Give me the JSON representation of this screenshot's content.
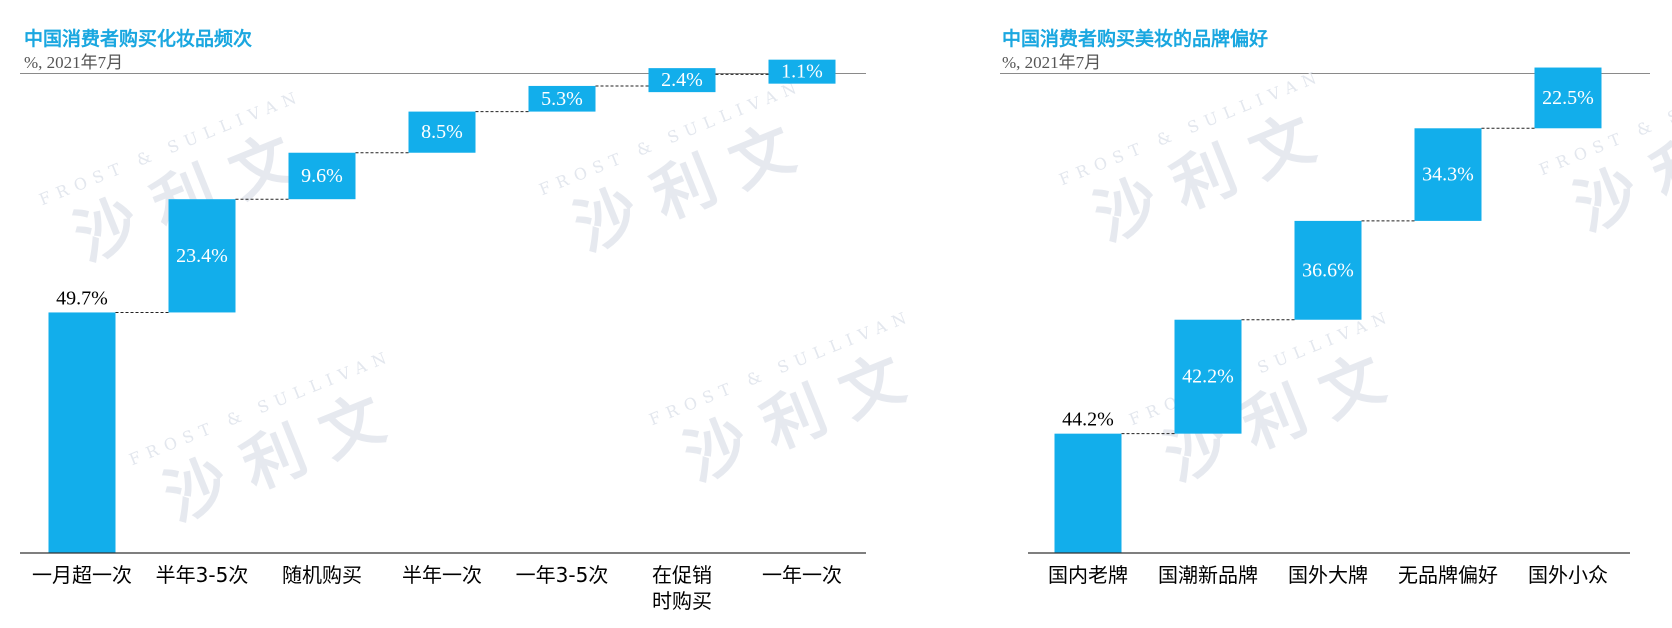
{
  "colors": {
    "bar": "#12aeeb",
    "title": "#1aa7e0",
    "subtitle": "#555555",
    "axis": "#333333"
  },
  "watermark": {
    "latin": "FROST & SULLIVAN",
    "cn": "沙 利 文"
  },
  "chart_data": [
    {
      "type": "waterfall",
      "title": "中国消费者购买化妆品频次",
      "subtitle": "%, 2021年7月",
      "categories": [
        "一月超一次",
        "半年3-5次",
        "随机购买",
        "半年一次",
        "一年3-5次",
        "在促销\n时购买",
        "一年一次"
      ],
      "values": [
        49.7,
        23.4,
        9.6,
        8.5,
        5.3,
        2.4,
        1.1
      ],
      "labels": [
        "49.7%",
        "23.4%",
        "9.6%",
        "8.5%",
        "5.3%",
        "2.4%",
        "1.1%"
      ],
      "ylim": [
        0,
        100
      ]
    },
    {
      "type": "waterfall",
      "title": "中国消费者购买美妆的品牌偏好",
      "subtitle": "%, 2021年7月",
      "categories": [
        "国内老牌",
        "国潮新品牌",
        "国外大牌",
        "无品牌偏好",
        "国外小众"
      ],
      "values": [
        44.2,
        42.2,
        36.6,
        34.3,
        22.5
      ],
      "labels": [
        "44.2%",
        "42.2%",
        "36.6%",
        "34.3%",
        "22.5%"
      ],
      "ylim": [
        0,
        180
      ]
    }
  ]
}
